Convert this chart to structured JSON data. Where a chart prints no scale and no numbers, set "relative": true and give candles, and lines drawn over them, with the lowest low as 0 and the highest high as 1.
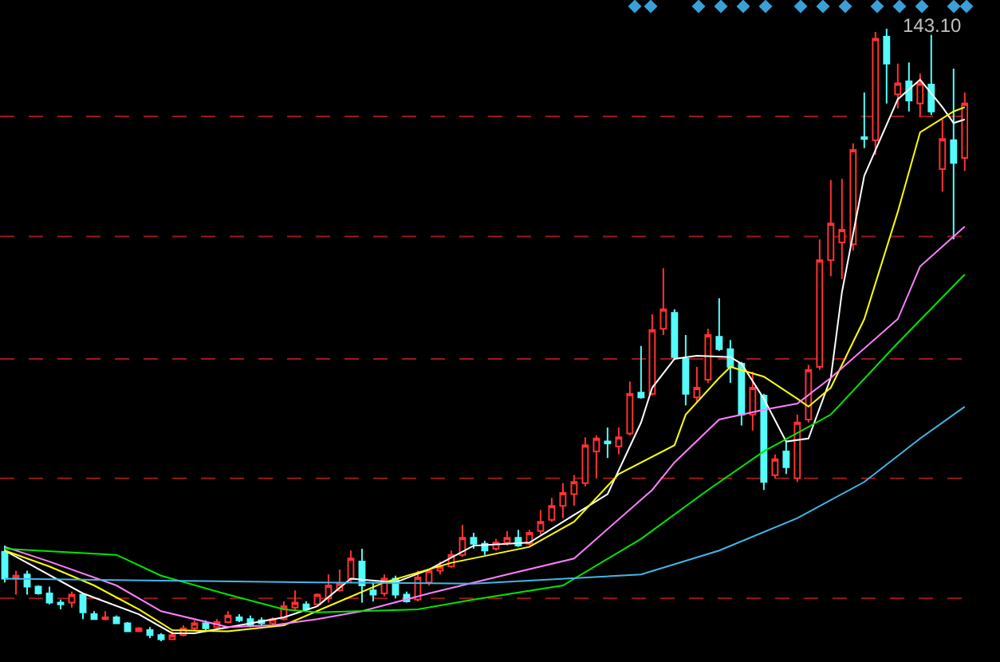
{
  "chart_data": {
    "type": "candlestick",
    "relative": true,
    "ref_lines": [
      {
        "axis": "y",
        "value": 0.857,
        "color": "#9a1a1a",
        "line_style": "dashed"
      },
      {
        "axis": "y",
        "value": 0.661,
        "color": "#9a1a1a",
        "line_style": "dashed"
      },
      {
        "axis": "y",
        "value": 0.461,
        "color": "#9a1a1a",
        "line_style": "dashed"
      },
      {
        "axis": "y",
        "value": 0.266,
        "color": "#9a1a1a",
        "line_style": "dashed"
      },
      {
        "axis": "y",
        "value": 0.07,
        "color": "#9a1a1a",
        "line_style": "dashed"
      }
    ],
    "categories": [
      null,
      null,
      null,
      null,
      null,
      null,
      null,
      null,
      null,
      null,
      null,
      null,
      null,
      null,
      null,
      null,
      null,
      null,
      null,
      null,
      null,
      null,
      null,
      null,
      null,
      null,
      null,
      null,
      null,
      null,
      null,
      null,
      null,
      null,
      null,
      null,
      null,
      null,
      null,
      null,
      null,
      null,
      null,
      null,
      null,
      null,
      null,
      null,
      null,
      null,
      null,
      null,
      null,
      null,
      null,
      null,
      null,
      null,
      null,
      null,
      null,
      null,
      null,
      null,
      null,
      null,
      null,
      null,
      null,
      null,
      null,
      null,
      null,
      null,
      null,
      null,
      null,
      null,
      null,
      null,
      null,
      null,
      null,
      null,
      null,
      null,
      null
    ],
    "ohlc": [
      [
        0.146,
        0.156,
        0.096,
        0.102
      ],
      [
        0.102,
        0.115,
        0.076,
        0.107
      ],
      [
        0.109,
        0.115,
        0.076,
        0.089
      ],
      [
        0.089,
        0.091,
        0.076,
        0.078
      ],
      [
        0.078,
        0.089,
        0.06,
        0.063
      ],
      [
        0.063,
        0.068,
        0.052,
        0.06
      ],
      [
        0.063,
        0.081,
        0.055,
        0.076
      ],
      [
        0.076,
        0.078,
        0.036,
        0.047
      ],
      [
        0.044,
        0.049,
        0.036,
        0.036
      ],
      [
        0.036,
        0.049,
        0.034,
        0.039
      ],
      [
        0.039,
        0.042,
        0.029,
        0.029
      ],
      [
        0.029,
        0.031,
        0.016,
        0.016
      ],
      [
        0.016,
        0.023,
        0.016,
        0.021
      ],
      [
        0.018,
        0.023,
        0.005,
        0.01
      ],
      [
        0.01,
        0.013,
        0,
        0.003
      ],
      [
        0.003,
        0.016,
        0.003,
        0.01
      ],
      [
        0.01,
        0.026,
        0.008,
        0.021
      ],
      [
        0.021,
        0.034,
        0.018,
        0.029
      ],
      [
        0.029,
        0.034,
        0.016,
        0.021
      ],
      [
        0.023,
        0.036,
        0.021,
        0.031
      ],
      [
        0.031,
        0.049,
        0.029,
        0.042
      ],
      [
        0.039,
        0.044,
        0.031,
        0.034
      ],
      [
        0.036,
        0.042,
        0.023,
        0.026
      ],
      [
        0.034,
        0.039,
        0.026,
        0.029
      ],
      [
        0.029,
        0.039,
        0.026,
        0.036
      ],
      [
        0.036,
        0.065,
        0.034,
        0.057
      ],
      [
        0.055,
        0.083,
        0.052,
        0.063
      ],
      [
        0.06,
        0.065,
        0.049,
        0.052
      ],
      [
        0.06,
        0.078,
        0.057,
        0.076
      ],
      [
        0.07,
        0.109,
        0.063,
        0.091
      ],
      [
        0.083,
        0.117,
        0.081,
        0.094
      ],
      [
        0.102,
        0.148,
        0.096,
        0.135
      ],
      [
        0.13,
        0.151,
        0.063,
        0.091
      ],
      [
        0.083,
        0.096,
        0.065,
        0.076
      ],
      [
        0.078,
        0.109,
        0.073,
        0.102
      ],
      [
        0.102,
        0.107,
        0.07,
        0.076
      ],
      [
        0.076,
        0.081,
        0.063,
        0.065
      ],
      [
        0.068,
        0.115,
        0.065,
        0.104
      ],
      [
        0.096,
        0.117,
        0.091,
        0.115
      ],
      [
        0.115,
        0.13,
        0.109,
        0.122
      ],
      [
        0.122,
        0.148,
        0.12,
        0.141
      ],
      [
        0.141,
        0.19,
        0.138,
        0.169
      ],
      [
        0.169,
        0.177,
        0.151,
        0.159
      ],
      [
        0.159,
        0.164,
        0.141,
        0.148
      ],
      [
        0.151,
        0.167,
        0.148,
        0.161
      ],
      [
        0.161,
        0.18,
        0.156,
        0.169
      ],
      [
        0.169,
        0.182,
        0.154,
        0.156
      ],
      [
        0.159,
        0.182,
        0.156,
        0.177
      ],
      [
        0.18,
        0.214,
        0.174,
        0.195
      ],
      [
        0.198,
        0.234,
        0.195,
        0.221
      ],
      [
        0.221,
        0.258,
        0.201,
        0.242
      ],
      [
        0.24,
        0.271,
        0.221,
        0.26
      ],
      [
        0.258,
        0.333,
        0.253,
        0.32
      ],
      [
        0.31,
        0.336,
        0.266,
        0.331
      ],
      [
        0.326,
        0.349,
        0.299,
        0.323
      ],
      [
        0.318,
        0.349,
        0.305,
        0.333
      ],
      [
        0.339,
        0.424,
        0.336,
        0.404
      ],
      [
        0.406,
        0.482,
        0.396,
        0.398
      ],
      [
        0.404,
        0.534,
        0.401,
        0.508
      ],
      [
        0.51,
        0.609,
        0.5,
        0.542
      ],
      [
        0.536,
        0.542,
        0.461,
        0.464
      ],
      [
        0.461,
        0.5,
        0.385,
        0.404
      ],
      [
        0.398,
        0.448,
        0.391,
        0.414
      ],
      [
        0.427,
        0.51,
        0.422,
        0.5
      ],
      [
        0.497,
        0.56,
        0.474,
        0.477
      ],
      [
        0.477,
        0.492,
        0.422,
        0.448
      ],
      [
        0.453,
        0.456,
        0.352,
        0.37
      ],
      [
        0.37,
        0.44,
        0.344,
        0.414
      ],
      [
        0.401,
        0.404,
        0.247,
        0.26
      ],
      [
        0.271,
        0.305,
        0.266,
        0.297
      ],
      [
        0.31,
        0.326,
        0.273,
        0.284
      ],
      [
        0.266,
        0.37,
        0.26,
        0.357
      ],
      [
        0.362,
        0.451,
        0.357,
        0.443
      ],
      [
        0.448,
        0.656,
        0.443,
        0.622
      ],
      [
        0.622,
        0.753,
        0.596,
        0.682
      ],
      [
        0.651,
        0.755,
        0.591,
        0.672
      ],
      [
        0.648,
        0.813,
        0.638,
        0.802
      ],
      [
        0.823,
        0.896,
        0.805,
        0.82
      ],
      [
        0.818,
        0.995,
        0.794,
        0.984
      ],
      [
        0.987,
        1,
        0.878,
        0.943
      ],
      [
        0.893,
        0.943,
        0.87,
        0.911
      ],
      [
        0.914,
        0.945,
        0.865,
        0.883
      ],
      [
        0.878,
        0.927,
        0.857,
        0.911
      ],
      [
        0.909,
        0.99,
        0.859,
        0.865
      ],
      [
        0.771,
        0.852,
        0.734,
        0.82
      ],
      [
        0.818,
        0.935,
        0.656,
        0.781
      ],
      [
        0.789,
        0.896,
        0.768,
        0.878
      ]
    ],
    "colors": [
      "#54fcfc",
      "#ff3232",
      "#54fcfc",
      "#54fcfc",
      "#54fcfc",
      "#54fcfc",
      "#ff3232",
      "#54fcfc",
      "#54fcfc",
      "#ff3232",
      "#54fcfc",
      "#54fcfc",
      "#ff3232",
      "#54fcfc",
      "#54fcfc",
      "#ff3232",
      "#ff3232",
      "#ff3232",
      "#54fcfc",
      "#ff3232",
      "#ff3232",
      "#54fcfc",
      "#54fcfc",
      "#54fcfc",
      "#ff3232",
      "#ff3232",
      "#ff3232",
      "#54fcfc",
      "#ff3232",
      "#ff3232",
      "#ff3232",
      "#ff3232",
      "#54fcfc",
      "#54fcfc",
      "#ff3232",
      "#54fcfc",
      "#54fcfc",
      "#ff3232",
      "#ff3232",
      "#ff3232",
      "#ff3232",
      "#ff3232",
      "#54fcfc",
      "#54fcfc",
      "#ff3232",
      "#ff3232",
      "#54fcfc",
      "#ff3232",
      "#ff3232",
      "#ff3232",
      "#ff3232",
      "#ff3232",
      "#ff3232",
      "#ff3232",
      "#54fcfc",
      "#ff3232",
      "#ff3232",
      "#54fcfc",
      "#ff3232",
      "#ff3232",
      "#54fcfc",
      "#54fcfc",
      "#ff3232",
      "#ff3232",
      "#54fcfc",
      "#54fcfc",
      "#54fcfc",
      "#ff3232",
      "#54fcfc",
      "#ff3232",
      "#54fcfc",
      "#ff3232",
      "#ff3232",
      "#ff3232",
      "#ff3232",
      "#ff3232",
      "#ff3232",
      "#54fcfc",
      "#ff3232",
      "#54fcfc",
      "#ff3232",
      "#54fcfc",
      "#ff3232",
      "#54fcfc",
      "#ff3232",
      "#54fcfc",
      "#ff3232"
    ],
    "series": [
      {
        "type": "line",
        "color": "#ffffff",
        "values": [
          0.148,
          null,
          0.128,
          null,
          null,
          null,
          null,
          0.078,
          null,
          null,
          null,
          null,
          0.044,
          null,
          null,
          0.013,
          null,
          0.013,
          null,
          null,
          null,
          0.026,
          null,
          null,
          null,
          0.039,
          null,
          null,
          0.057,
          null,
          null,
          0.102,
          null,
          null,
          null,
          0.096,
          null,
          null,
          0.117,
          null,
          null,
          null,
          0.156,
          null,
          null,
          null,
          null,
          0.161,
          null,
          null,
          null,
          0.206,
          null,
          null,
          0.24,
          null,
          null,
          0.357,
          0.414,
          null,
          0.461,
          null,
          0.466,
          null,
          null,
          0.464,
          0.453,
          null,
          0.396,
          null,
          0.326,
          null,
          0.331,
          null,
          0.43,
          0.57,
          null,
          0.76,
          null,
          null,
          0.885,
          null,
          0.917,
          null,
          0.872,
          0.846,
          0.852
        ]
      },
      {
        "type": "line",
        "color": "#ffff00",
        "values": [
          0.148,
          null,
          null,
          null,
          0.122,
          null,
          null,
          null,
          0.091,
          null,
          null,
          null,
          0.052,
          null,
          null,
          0.018,
          null,
          null,
          null,
          null,
          0.016,
          null,
          null,
          null,
          null,
          0.026,
          null,
          null,
          null,
          null,
          0.065,
          null,
          null,
          null,
          0.096,
          null,
          null,
          null,
          null,
          null,
          0.128,
          null,
          null,
          null,
          null,
          null,
          null,
          0.154,
          null,
          null,
          null,
          0.195,
          null,
          null,
          null,
          0.273,
          null,
          null,
          null,
          null,
          0.32,
          0.37,
          null,
          null,
          0.43,
          0.448,
          null,
          null,
          0.432,
          null,
          null,
          0.396,
          0.383,
          null,
          0.414,
          null,
          null,
          0.526,
          null,
          null,
          0.701,
          null,
          0.831,
          null,
          null,
          0.865,
          0.872
        ]
      },
      {
        "type": "line",
        "color": "#ff80ff",
        "values": [
          0.154,
          null,
          null,
          null,
          0.13,
          null,
          null,
          null,
          null,
          null,
          0.091,
          null,
          null,
          null,
          0.049,
          null,
          null,
          null,
          null,
          null,
          0.023,
          null,
          null,
          null,
          0.026,
          null,
          null,
          null,
          0.036,
          null,
          null,
          null,
          0.049,
          null,
          null,
          null,
          null,
          null,
          0.078,
          null,
          null,
          null,
          null,
          null,
          null,
          0.109,
          null,
          null,
          null,
          null,
          null,
          0.135,
          null,
          null,
          null,
          null,
          null,
          null,
          0.247,
          null,
          0.292,
          null,
          null,
          null,
          0.362,
          null,
          null,
          null,
          0.378,
          null,
          null,
          0.388,
          null,
          null,
          0.43,
          null,
          null,
          null,
          null,
          null,
          0.526,
          null,
          0.612,
          null,
          null,
          null,
          0.677
        ]
      },
      {
        "type": "line",
        "color": "#00e600",
        "values": [
          0.151,
          null,
          null,
          null,
          null,
          null,
          null,
          null,
          null,
          null,
          0.141,
          null,
          null,
          null,
          0.107,
          null,
          null,
          null,
          null,
          null,
          0.076,
          null,
          null,
          null,
          null,
          0.052,
          null,
          null,
          0.047,
          null,
          null,
          null,
          null,
          null,
          null,
          null,
          null,
          0.052,
          null,
          null,
          null,
          null,
          0.068,
          null,
          null,
          null,
          null,
          null,
          null,
          null,
          0.091,
          null,
          null,
          null,
          null,
          null,
          null,
          0.167,
          null,
          null,
          null,
          null,
          null,
          0.247,
          null,
          null,
          null,
          null,
          0.31,
          null,
          null,
          null,
          null,
          null,
          0.37,
          null,
          null,
          null,
          null,
          null,
          0.487,
          null,
          null,
          null,
          null,
          null,
          0.599
        ]
      },
      {
        "type": "line",
        "color": "#3fb8e8",
        "values": [
          0.102,
          null,
          null,
          null,
          null,
          null,
          null,
          null,
          null,
          null,
          null,
          null,
          null,
          null,
          0.099,
          null,
          null,
          null,
          null,
          null,
          null,
          null,
          null,
          null,
          null,
          null,
          null,
          null,
          0.096,
          null,
          null,
          null,
          null,
          null,
          null,
          null,
          null,
          null,
          null,
          null,
          null,
          null,
          0.094,
          null,
          null,
          null,
          null,
          null,
          null,
          null,
          null,
          null,
          null,
          null,
          null,
          null,
          null,
          0.109,
          null,
          null,
          null,
          null,
          null,
          null,
          0.148,
          null,
          null,
          null,
          null,
          null,
          null,
          0.201,
          null,
          null,
          null,
          null,
          null,
          0.26,
          null,
          null,
          null,
          null,
          0.331,
          null,
          null,
          null,
          0.383
        ]
      }
    ],
    "annotations": [
      "143.10"
    ]
  }
}
